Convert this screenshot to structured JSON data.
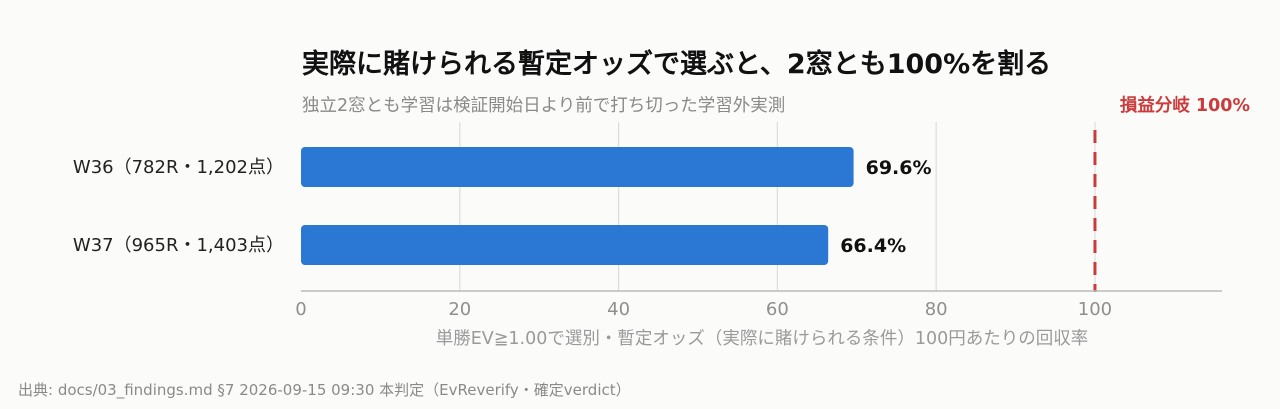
{
  "chart_data": {
    "type": "bar",
    "orientation": "horizontal",
    "title": "実際に賭けられる暫定オッズで選ぶと、2窓とも100%を割る",
    "subtitle": "独立2窓とも学習は検証開始日より前で打ち切った学習外実測",
    "xlabel": "単勝EV≧1.00で選別・暫定オッズ（実際に賭けられる条件）100円あたりの回収率",
    "categories": [
      "W36（782R・1,202点）",
      "W37（965R・1,403点）"
    ],
    "values": [
      69.6,
      66.4
    ],
    "value_labels": [
      "69.6%",
      "66.4%"
    ],
    "xlim": [
      0,
      116
    ],
    "xticks": [
      0,
      20,
      40,
      60,
      80,
      100
    ],
    "xtick_labels": [
      "0",
      "20",
      "40",
      "60",
      "80",
      "100"
    ],
    "grid": "vertical",
    "reference_line": {
      "value": 100,
      "label": "損益分岐 100%",
      "style": "dashed"
    },
    "colors": {
      "bar": "#2b78d4",
      "reference": "#cc3b3b",
      "grid": "#dddddd",
      "axis": "#bbbbbb"
    }
  },
  "source_note": "出典: docs/03_findings.md §7 2026-09-15 09:30 本判定（EvReverify・確定verdict）"
}
